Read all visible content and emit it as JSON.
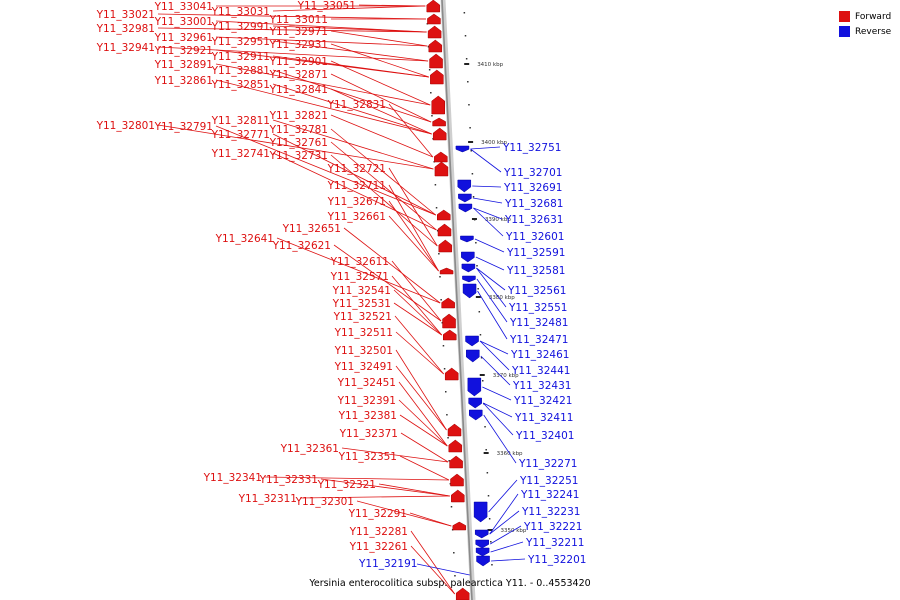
{
  "colors": {
    "forward": "#dd1111",
    "reverse": "#1111dd",
    "axis": "#999999"
  },
  "legend": {
    "forward": "Forward",
    "reverse": "Reverse"
  },
  "caption": "Yersinia enterocolitica subsp. palearctica Y11. - 0..4553420",
  "ticks": [
    "3410 kbp",
    "3400 kbp",
    "3390 kbp",
    "3380 kbp",
    "3370 kbp",
    "3360 kbp",
    "3350 kbp"
  ],
  "forward_genes": [
    "Y11_33051",
    "Y11_33041",
    "Y11_33031",
    "Y11_33021",
    "Y11_33011",
    "Y11_33001",
    "Y11_32991",
    "Y11_32981",
    "Y11_32971",
    "Y11_32961",
    "Y11_32951",
    "Y11_32941",
    "Y11_32931",
    "Y11_32921",
    "Y11_32911",
    "Y11_32901",
    "Y11_32891",
    "Y11_32881",
    "Y11_32871",
    "Y11_32861",
    "Y11_32851",
    "Y11_32841",
    "Y11_32831",
    "Y11_32821",
    "Y11_32811",
    "Y11_32801",
    "Y11_32791",
    "Y11_32781",
    "Y11_32771",
    "Y11_32761",
    "Y11_32741",
    "Y11_32731",
    "Y11_32721",
    "Y11_32711",
    "Y11_32671",
    "Y11_32661",
    "Y11_32651",
    "Y11_32641",
    "Y11_32621",
    "Y11_32611",
    "Y11_32571",
    "Y11_32541",
    "Y11_32531",
    "Y11_32521",
    "Y11_32511",
    "Y11_32501",
    "Y11_32491",
    "Y11_32451",
    "Y11_32391",
    "Y11_32381",
    "Y11_32371",
    "Y11_32361",
    "Y11_32351",
    "Y11_32341",
    "Y11_32331",
    "Y11_32321",
    "Y11_32311",
    "Y11_32301",
    "Y11_32291",
    "Y11_32281",
    "Y11_32261"
  ],
  "reverse_genes": [
    "Y11_32751",
    "Y11_32701",
    "Y11_32691",
    "Y11_32681",
    "Y11_32631",
    "Y11_32601",
    "Y11_32591",
    "Y11_32581",
    "Y11_32561",
    "Y11_32551",
    "Y11_32481",
    "Y11_32471",
    "Y11_32461",
    "Y11_32441",
    "Y11_32431",
    "Y11_32421",
    "Y11_32411",
    "Y11_32401",
    "Y11_32271",
    "Y11_32251",
    "Y11_32241",
    "Y11_32231",
    "Y11_32221",
    "Y11_32211",
    "Y11_32201",
    "Y11_32191"
  ]
}
